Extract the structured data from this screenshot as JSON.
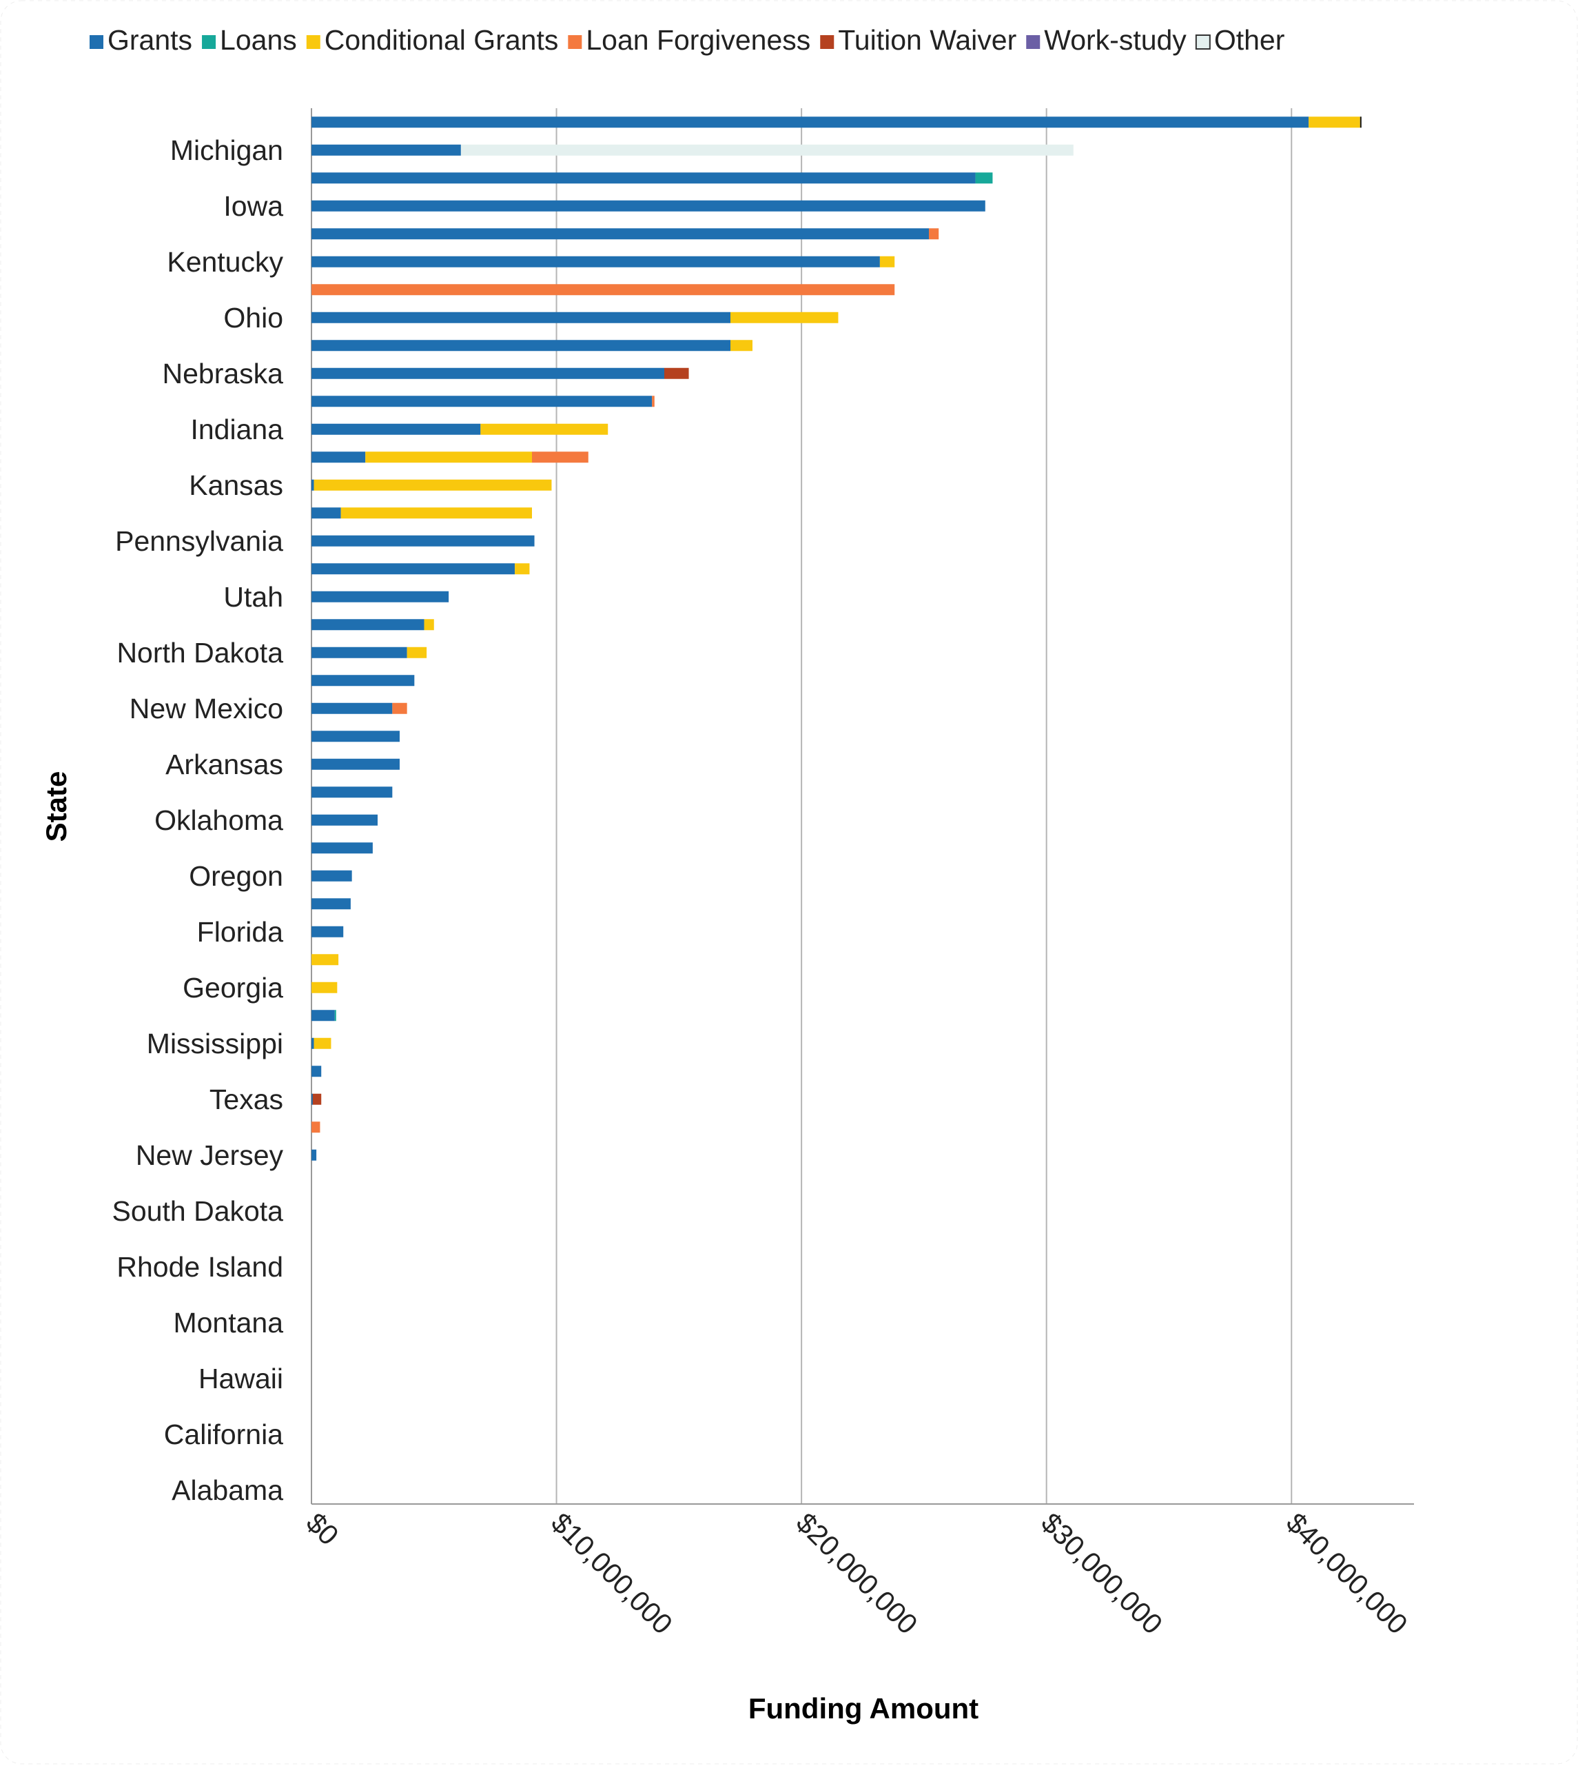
{
  "chart_data": {
    "type": "bar",
    "orientation": "horizontal",
    "stacked": true,
    "xlabel": "Funding Amount",
    "ylabel": "State",
    "xlim": [
      0,
      45000000
    ],
    "xticks": [
      0,
      10000000,
      20000000,
      30000000,
      40000000
    ],
    "xtick_labels": [
      "$0",
      "$10,000,000",
      "$20,000,000",
      "$30,000,000",
      "$40,000,000"
    ],
    "grid": "vertical",
    "legend_position": "top",
    "series_names": [
      "Grants",
      "Loans",
      "Conditional Grants",
      "Loan Forgiveness",
      "Tuition Waiver",
      "Work-study",
      "Other"
    ],
    "colors": [
      "#1f6fb0",
      "#17a89a",
      "#f9c80e",
      "#f4793e",
      "#b5411f",
      "#6b5fa5",
      "#e4f0ef"
    ],
    "categories": [
      "",
      "Michigan",
      "",
      "Iowa",
      "",
      "Kentucky",
      "",
      "Ohio",
      "",
      "Nebraska",
      "",
      "Indiana",
      "",
      "Kansas",
      "",
      "Pennsylvania",
      "",
      "Utah",
      "",
      "North Dakota",
      "",
      "New Mexico",
      "",
      "Arkansas",
      "",
      "Oklahoma",
      "",
      "Oregon",
      "",
      "Florida",
      "",
      "Georgia",
      "",
      "Mississippi",
      "",
      "Texas",
      "",
      "New Jersey",
      "",
      "South Dakota",
      "",
      "Rhode Island",
      "",
      "Montana",
      "",
      "Hawaii",
      "",
      "California",
      "",
      "Alabama"
    ],
    "series": [
      {
        "name": "Grants",
        "values": [
          40700000,
          6100000,
          27100000,
          27500000,
          25200000,
          23200000,
          0,
          17100000,
          17100000,
          14400000,
          13900000,
          6900000,
          2200000,
          100000,
          1200000,
          9100000,
          8300000,
          5600000,
          4600000,
          3900000,
          4200000,
          3300000,
          3600000,
          3600000,
          3300000,
          2700000,
          2500000,
          1650000,
          1600000,
          1300000,
          0,
          0,
          950000,
          100000,
          400000,
          50000,
          0,
          200000,
          0,
          0,
          0,
          0,
          0,
          0,
          0,
          0,
          0,
          0,
          0,
          0
        ]
      },
      {
        "name": "Loans",
        "values": [
          0,
          0,
          700000,
          0,
          0,
          0,
          0,
          0,
          0,
          0,
          0,
          0,
          0,
          0,
          0,
          0,
          0,
          0,
          0,
          0,
          0,
          0,
          0,
          0,
          0,
          0,
          0,
          0,
          0,
          0,
          0,
          0,
          50000,
          0,
          0,
          0,
          0,
          0,
          0,
          0,
          0,
          0,
          0,
          0,
          0,
          0,
          0,
          0,
          0,
          0
        ]
      },
      {
        "name": "Conditional Grants",
        "values": [
          2100000,
          0,
          0,
          0,
          0,
          600000,
          0,
          4400000,
          900000,
          0,
          0,
          5200000,
          6800000,
          9700000,
          7800000,
          0,
          600000,
          0,
          400000,
          800000,
          0,
          0,
          0,
          0,
          0,
          0,
          0,
          0,
          0,
          0,
          1100000,
          1050000,
          0,
          700000,
          0,
          0,
          0,
          0,
          0,
          0,
          0,
          0,
          0,
          0,
          0,
          0,
          0,
          0,
          0,
          0
        ]
      },
      {
        "name": "Loan Forgiveness",
        "values": [
          0,
          0,
          0,
          0,
          400000,
          0,
          23800000,
          0,
          0,
          0,
          100000,
          0,
          2300000,
          0,
          0,
          0,
          0,
          0,
          0,
          0,
          0,
          600000,
          0,
          0,
          0,
          0,
          0,
          0,
          0,
          0,
          0,
          0,
          0,
          0,
          0,
          0,
          350000,
          0,
          0,
          0,
          0,
          0,
          0,
          0,
          0,
          0,
          0,
          0,
          0,
          0
        ]
      },
      {
        "name": "Tuition Waiver",
        "values": [
          0,
          0,
          0,
          0,
          0,
          0,
          0,
          0,
          0,
          1000000,
          0,
          0,
          0,
          0,
          0,
          0,
          0,
          0,
          0,
          0,
          0,
          0,
          0,
          0,
          0,
          0,
          0,
          0,
          0,
          0,
          0,
          0,
          0,
          0,
          0,
          350000,
          0,
          0,
          0,
          0,
          0,
          0,
          0,
          0,
          0,
          0,
          0,
          0,
          0,
          0
        ]
      },
      {
        "name": "Work-study",
        "values": [
          50000,
          0,
          0,
          0,
          0,
          0,
          0,
          0,
          0,
          0,
          0,
          0,
          0,
          0,
          0,
          0,
          0,
          0,
          0,
          0,
          0,
          0,
          0,
          0,
          0,
          0,
          0,
          0,
          0,
          0,
          0,
          0,
          0,
          0,
          0,
          0,
          0,
          0,
          0,
          0,
          0,
          0,
          0,
          0,
          0,
          0,
          0,
          0,
          0,
          0
        ]
      },
      {
        "name": "Other",
        "values": [
          0,
          25000000,
          0,
          0,
          0,
          0,
          0,
          0,
          0,
          0,
          0,
          0,
          0,
          0,
          0,
          0,
          0,
          0,
          0,
          0,
          0,
          0,
          0,
          0,
          0,
          0,
          0,
          0,
          0,
          0,
          0,
          0,
          0,
          0,
          0,
          0,
          0,
          0,
          0,
          0,
          0,
          0,
          0,
          0,
          0,
          0,
          0,
          0,
          0,
          0
        ]
      }
    ]
  }
}
